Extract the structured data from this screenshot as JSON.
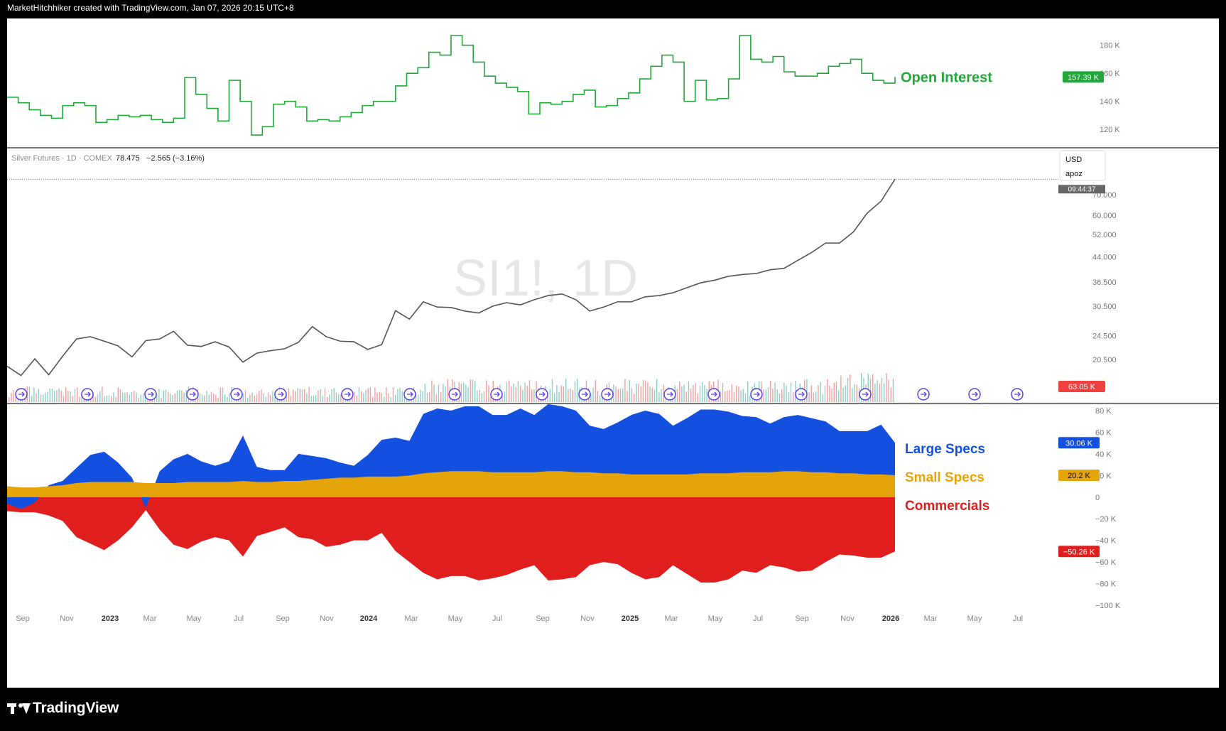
{
  "header": {
    "text": "MarketHitchhiker created with TradingView.com, Jan 07, 2026 20:15 UTC+8"
  },
  "footer": {
    "brand": "TradingView"
  },
  "chart_data": {
    "type": "line",
    "x_axis": {
      "ticks": [
        "Sep",
        "Nov",
        "2023",
        "Mar",
        "May",
        "Jul",
        "Sep",
        "Nov",
        "2024",
        "Mar",
        "May",
        "Jul",
        "Sep",
        "Nov",
        "2025",
        "Mar",
        "May",
        "Jul",
        "Sep",
        "Nov",
        "2026",
        "Mar",
        "May",
        "Jul"
      ],
      "bold": [
        "2023",
        "2024",
        "2025",
        "2026"
      ]
    },
    "open_interest": {
      "label": "Open Interest",
      "color": "#22a83a",
      "last_value_label": "157.39 K",
      "y_ticks": [
        "180 K",
        "160 K",
        "140 K",
        "120 K"
      ],
      "ylim": [
        112000,
        192000
      ],
      "values": [
        143000,
        139000,
        134000,
        130000,
        128000,
        137000,
        139000,
        137000,
        125000,
        127000,
        130000,
        129000,
        130000,
        127000,
        125000,
        128000,
        157000,
        145000,
        135000,
        126000,
        155000,
        140000,
        116000,
        122000,
        138000,
        140000,
        136000,
        126000,
        127000,
        126000,
        129000,
        132000,
        137000,
        140000,
        140000,
        151000,
        160000,
        164000,
        175000,
        173000,
        187000,
        180000,
        168000,
        158000,
        153000,
        150000,
        147000,
        131000,
        139000,
        138000,
        140000,
        145000,
        148000,
        136000,
        137000,
        142000,
        146000,
        156000,
        165000,
        173000,
        168000,
        140000,
        155000,
        141000,
        142000,
        156000,
        187000,
        170000,
        168000,
        172000,
        161000,
        158000,
        158000,
        160000,
        165000,
        167000,
        170000,
        160000,
        155000,
        153000,
        157390
      ]
    },
    "price": {
      "title": "Silver Futures · 1D · COMEX",
      "last": "78.475",
      "change": "−2.565 (−3.16%)",
      "watermark": "SI1!, 1D",
      "currency_label": "USD",
      "scale_label": "apoz",
      "countdown": "09:44:37",
      "y_ticks": [
        "70.000",
        "60.000",
        "52.000",
        "44.000",
        "36.500",
        "30.500",
        "24.500",
        "20.500"
      ],
      "scale": "log",
      "ylim": [
        17.5,
        82
      ],
      "values": [
        19.5,
        18.2,
        20.6,
        18.3,
        21.0,
        23.9,
        24.3,
        23.5,
        22.7,
        20.9,
        23.6,
        23.9,
        25.3,
        22.8,
        22.6,
        23.4,
        22.5,
        20.1,
        21.5,
        21.9,
        22.2,
        23.3,
        26.2,
        24.3,
        23.5,
        23.4,
        22.1,
        22.9,
        29.5,
        27.7,
        31.5,
        30.3,
        30.2,
        29.4,
        29.0,
        30.5,
        31.3,
        30.8,
        32.0,
        33.0,
        33.4,
        32.0,
        29.4,
        30.3,
        31.5,
        31.5,
        32.7,
        33.0,
        33.7,
        35.0,
        36.3,
        37.0,
        38.1,
        38.6,
        38.9,
        40.0,
        40.4,
        42.9,
        45.5,
        48.8,
        48.8,
        53.0,
        61.0,
        66.7,
        78.475
      ]
    },
    "volume": {
      "last_value_label": "63.05 K",
      "up_color": "#4fb9a7",
      "down_color": "#ef6b6b"
    },
    "cot": {
      "y_ticks": [
        "80 K",
        "60 K",
        "40 K",
        "20 K",
        "0",
        "−20 K",
        "−40 K",
        "−60 K",
        "−80 K",
        "−100 K"
      ],
      "ylim": [
        -100000,
        80000
      ],
      "series": [
        {
          "name": "Large Specs",
          "color": "#1450e0",
          "last_value_label": "30.06 K",
          "values": [
            -6000,
            -11000,
            -5000,
            1000,
            4000,
            14000,
            25000,
            28000,
            18000,
            4000,
            -10000,
            11000,
            22000,
            26000,
            19000,
            15000,
            19000,
            42000,
            14000,
            11000,
            10000,
            25000,
            22000,
            19000,
            14000,
            11000,
            20000,
            34000,
            36000,
            32000,
            55000,
            59000,
            56000,
            60000,
            60000,
            53000,
            53000,
            59000,
            53000,
            62000,
            60000,
            57000,
            43000,
            41000,
            47000,
            55000,
            59000,
            56000,
            45000,
            52000,
            59000,
            59000,
            57000,
            52000,
            51000,
            45000,
            50000,
            52000,
            50000,
            47000,
            39000,
            39000,
            40000,
            46000,
            30060
          ]
        },
        {
          "name": "Small Specs",
          "color": "#e5a50a",
          "last_value_label": "20.2 K",
          "values": [
            10000,
            9000,
            9000,
            10000,
            11000,
            13000,
            14000,
            14000,
            14000,
            14000,
            13000,
            13000,
            13000,
            14000,
            14000,
            14000,
            14000,
            15000,
            14000,
            14000,
            15000,
            15000,
            16000,
            17000,
            18000,
            18000,
            19000,
            19000,
            19000,
            20000,
            22000,
            23000,
            24000,
            24000,
            24000,
            23000,
            23000,
            23000,
            23000,
            24000,
            24000,
            23000,
            23000,
            22000,
            22000,
            21000,
            21000,
            21000,
            21000,
            21000,
            22000,
            22000,
            22000,
            23000,
            23000,
            23000,
            24000,
            24000,
            23000,
            23000,
            22000,
            22000,
            21000,
            21000,
            20200
          ]
        },
        {
          "name": "Commercials",
          "color": "#e01e1e",
          "last_value_label": "−50.26 K",
          "values": [
            -13000,
            -14000,
            -14000,
            -17000,
            -22000,
            -37000,
            -43000,
            -49000,
            -40000,
            -28000,
            -12000,
            -30000,
            -44000,
            -48000,
            -41000,
            -37000,
            -40000,
            -55000,
            -36000,
            -32000,
            -28000,
            -37000,
            -39000,
            -46000,
            -44000,
            -40000,
            -40000,
            -33000,
            -50000,
            -60000,
            -70000,
            -76000,
            -73000,
            -73000,
            -77000,
            -75000,
            -72000,
            -67000,
            -63000,
            -77000,
            -76000,
            -74000,
            -63000,
            -60000,
            -62000,
            -70000,
            -76000,
            -74000,
            -63000,
            -71000,
            -79000,
            -79000,
            -76000,
            -68000,
            -70000,
            -63000,
            -65000,
            -69000,
            -68000,
            -60000,
            -53000,
            -54000,
            -56000,
            -56000,
            -50260
          ]
        }
      ]
    }
  }
}
